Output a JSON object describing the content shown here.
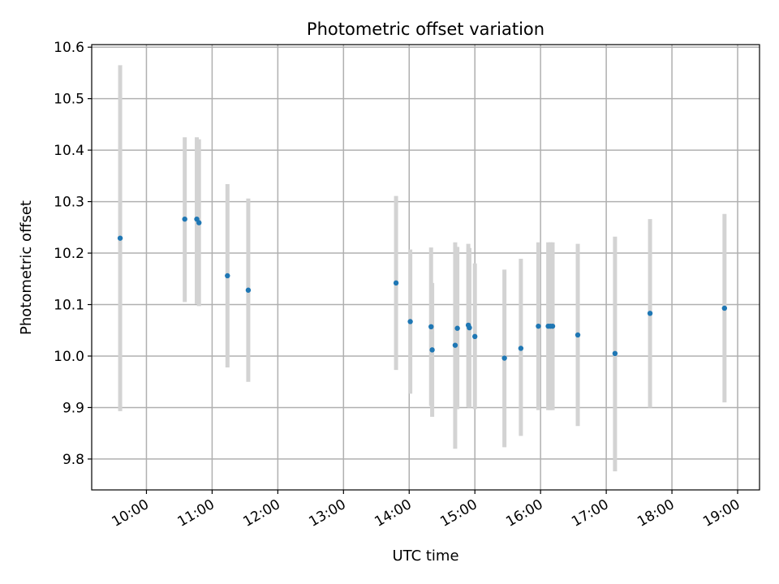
{
  "chart_data": {
    "type": "scatter",
    "title": "Photometric offset variation",
    "xlabel": "UTC time",
    "ylabel": "Photometric offset",
    "xlim": [
      "09:10",
      "19:20"
    ],
    "ylim": [
      9.74,
      10.605
    ],
    "x_ticks": [
      "10:00",
      "11:00",
      "12:00",
      "13:00",
      "14:00",
      "15:00",
      "16:00",
      "17:00",
      "18:00",
      "19:00"
    ],
    "y_ticks": [
      "9.8",
      "9.9",
      "10.0",
      "10.1",
      "10.2",
      "10.3",
      "10.4",
      "10.5",
      "10.6"
    ],
    "grid": true,
    "colors": {
      "points": "#1f77b4",
      "error_bars": "#d3d3d3",
      "grid": "#b0b0b0"
    },
    "points": [
      {
        "x": "09:36",
        "y": 10.229,
        "low": 9.893,
        "high": 10.565
      },
      {
        "x": "10:35",
        "y": 10.266,
        "low": 10.105,
        "high": 10.425
      },
      {
        "x": "10:46",
        "y": 10.266,
        "low": 10.101,
        "high": 10.425
      },
      {
        "x": "10:48",
        "y": 10.259,
        "low": 10.097,
        "high": 10.421
      },
      {
        "x": "11:14",
        "y": 10.156,
        "low": 9.978,
        "high": 10.334
      },
      {
        "x": "11:33",
        "y": 10.128,
        "low": 9.95,
        "high": 10.306
      },
      {
        "x": "13:48",
        "y": 10.142,
        "low": 9.973,
        "high": 10.311
      },
      {
        "x": "14:01",
        "y": 10.067,
        "low": 9.927,
        "high": 10.207
      },
      {
        "x": "14:20",
        "y": 10.057,
        "low": 9.903,
        "high": 10.211
      },
      {
        "x": "14:21",
        "y": 10.012,
        "low": 9.882,
        "high": 10.142
      },
      {
        "x": "14:42",
        "y": 10.021,
        "low": 9.82,
        "high": 10.221
      },
      {
        "x": "14:44",
        "y": 10.054,
        "low": 9.897,
        "high": 10.212
      },
      {
        "x": "14:54",
        "y": 10.06,
        "low": 9.901,
        "high": 10.218
      },
      {
        "x": "14:55",
        "y": 10.055,
        "low": 9.9,
        "high": 10.21
      },
      {
        "x": "15:00",
        "y": 10.038,
        "low": 9.897,
        "high": 10.18
      },
      {
        "x": "15:27",
        "y": 9.996,
        "low": 9.823,
        "high": 10.168
      },
      {
        "x": "15:42",
        "y": 10.015,
        "low": 9.845,
        "high": 10.189
      },
      {
        "x": "15:58",
        "y": 10.058,
        "low": 9.895,
        "high": 10.221
      },
      {
        "x": "16:07",
        "y": 10.058,
        "low": 9.895,
        "high": 10.221
      },
      {
        "x": "16:09",
        "y": 10.058,
        "low": 9.895,
        "high": 10.221
      },
      {
        "x": "16:11",
        "y": 10.058,
        "low": 9.895,
        "high": 10.221
      },
      {
        "x": "16:34",
        "y": 10.041,
        "low": 9.864,
        "high": 10.218
      },
      {
        "x": "17:08",
        "y": 10.005,
        "low": 9.776,
        "high": 10.232
      },
      {
        "x": "17:40",
        "y": 10.083,
        "low": 9.9,
        "high": 10.266
      },
      {
        "x": "18:48",
        "y": 10.093,
        "low": 9.91,
        "high": 10.276
      }
    ]
  }
}
